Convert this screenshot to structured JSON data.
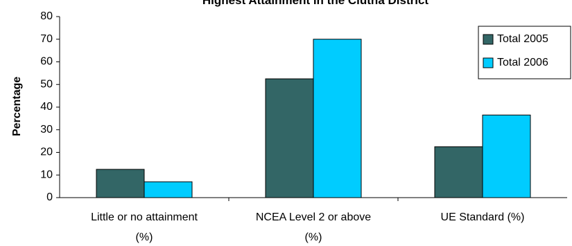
{
  "chart_data": {
    "type": "bar",
    "title": "Highest Attainment in the Clutha District",
    "xlabel": "",
    "ylabel": "Percentage",
    "ylim": [
      0,
      80
    ],
    "yticks": [
      0,
      10,
      20,
      30,
      40,
      50,
      60,
      70,
      80
    ],
    "categories": [
      [
        "Little or no attainment",
        "(%)"
      ],
      [
        "NCEA Level 2 or above",
        "(%)"
      ],
      [
        "UE Standard (%)"
      ]
    ],
    "series": [
      {
        "name": "Total 2005",
        "color": "#336666",
        "values": [
          12.5,
          52.5,
          22.5
        ]
      },
      {
        "name": "Total 2006",
        "color": "#00ccff",
        "values": [
          7,
          70,
          36.5
        ]
      }
    ],
    "grid": false,
    "legend": "right"
  }
}
